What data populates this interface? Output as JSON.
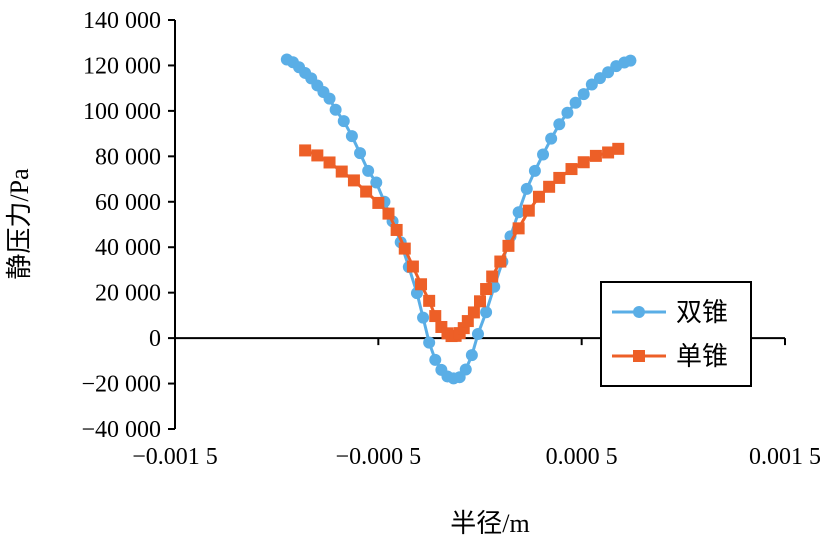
{
  "chart_data": {
    "type": "line",
    "title": "",
    "xlabel": "半径/m",
    "ylabel": "静压力/Pa",
    "xlim": [
      -0.0015,
      0.0015
    ],
    "ylim": [
      -40000,
      140000
    ],
    "x_ticks": [
      -0.0015,
      -0.0005,
      0.0005,
      0.0015
    ],
    "x_tick_labels": [
      "−0.001 5",
      "−0.000 5",
      "0.000 5",
      "0.001 5"
    ],
    "y_ticks": [
      -40000,
      -20000,
      0,
      20000,
      40000,
      60000,
      80000,
      100000,
      120000,
      140000
    ],
    "y_tick_labels": [
      "−40 000",
      "−20 000",
      "0",
      "20 000",
      "40 000",
      "60 000",
      "80 000",
      "100 000",
      "120 000",
      "140 000"
    ],
    "grid": false,
    "legend_position": "bottom-right",
    "series": [
      {
        "name": "双锥",
        "color": "#5aaee6",
        "marker": "circle",
        "points": [
          [
            -0.00095,
            122600
          ],
          [
            -0.00092,
            121400
          ],
          [
            -0.00089,
            119200
          ],
          [
            -0.00086,
            116700
          ],
          [
            -0.00083,
            114300
          ],
          [
            -0.0008,
            111200
          ],
          [
            -0.00077,
            108300
          ],
          [
            -0.00074,
            105400
          ],
          [
            -0.00071,
            100500
          ],
          [
            -0.00067,
            95500
          ],
          [
            -0.00063,
            88900
          ],
          [
            -0.00059,
            81400
          ],
          [
            -0.00055,
            73600
          ],
          [
            -0.00051,
            68500
          ],
          [
            -0.00047,
            60000
          ],
          [
            -0.00043,
            51400
          ],
          [
            -0.00039,
            42200
          ],
          [
            -0.00035,
            31300
          ],
          [
            -0.00031,
            19800
          ],
          [
            -0.00028,
            9000
          ],
          [
            -0.00025,
            -2000
          ],
          [
            -0.00022,
            -9600
          ],
          [
            -0.00019,
            -14000
          ],
          [
            -0.00016,
            -16900
          ],
          [
            -0.00013,
            -17700
          ],
          [
            -0.0001,
            -17200
          ],
          [
            -7e-05,
            -13800
          ],
          [
            -4e-05,
            -7500
          ],
          [
            -1e-05,
            1800
          ],
          [
            3e-05,
            11400
          ],
          [
            7e-05,
            22600
          ],
          [
            0.00011,
            33600
          ],
          [
            0.00015,
            44800
          ],
          [
            0.00019,
            55400
          ],
          [
            0.00023,
            65700
          ],
          [
            0.00027,
            73600
          ],
          [
            0.00031,
            80800
          ],
          [
            0.00035,
            87800
          ],
          [
            0.00039,
            94100
          ],
          [
            0.00043,
            99200
          ],
          [
            0.00047,
            103600
          ],
          [
            0.00051,
            107400
          ],
          [
            0.00055,
            111600
          ],
          [
            0.00059,
            114400
          ],
          [
            0.00063,
            117000
          ],
          [
            0.00067,
            119700
          ],
          [
            0.00071,
            121300
          ],
          [
            0.00074,
            122100
          ]
        ]
      },
      {
        "name": "单锥",
        "color": "#ed5f27",
        "marker": "square",
        "points": [
          [
            -0.00086,
            82600
          ],
          [
            -0.0008,
            80400
          ],
          [
            -0.00074,
            77300
          ],
          [
            -0.00068,
            73300
          ],
          [
            -0.00062,
            69400
          ],
          [
            -0.00056,
            64500
          ],
          [
            -0.0005,
            59500
          ],
          [
            -0.00045,
            54800
          ],
          [
            -0.00041,
            47600
          ],
          [
            -0.00037,
            39400
          ],
          [
            -0.00033,
            31500
          ],
          [
            -0.00029,
            23700
          ],
          [
            -0.00025,
            16400
          ],
          [
            -0.00022,
            9700
          ],
          [
            -0.00019,
            4900
          ],
          [
            -0.00016,
            2100
          ],
          [
            -0.00014,
            900
          ],
          [
            -0.00012,
            1000
          ],
          [
            -0.0001,
            2200
          ],
          [
            -8e-05,
            4400
          ],
          [
            -6e-05,
            7500
          ],
          [
            -3e-05,
            11300
          ],
          [
            0.0,
            16200
          ],
          [
            3e-05,
            21600
          ],
          [
            6e-05,
            27100
          ],
          [
            0.0001,
            33700
          ],
          [
            0.00014,
            40600
          ],
          [
            0.00019,
            48300
          ],
          [
            0.00024,
            56100
          ],
          [
            0.00029,
            62200
          ],
          [
            0.00034,
            66600
          ],
          [
            0.00039,
            70500
          ],
          [
            0.00045,
            74400
          ],
          [
            0.00051,
            77400
          ],
          [
            0.00057,
            80200
          ],
          [
            0.00063,
            81700
          ],
          [
            0.00068,
            83300
          ]
        ]
      }
    ]
  }
}
